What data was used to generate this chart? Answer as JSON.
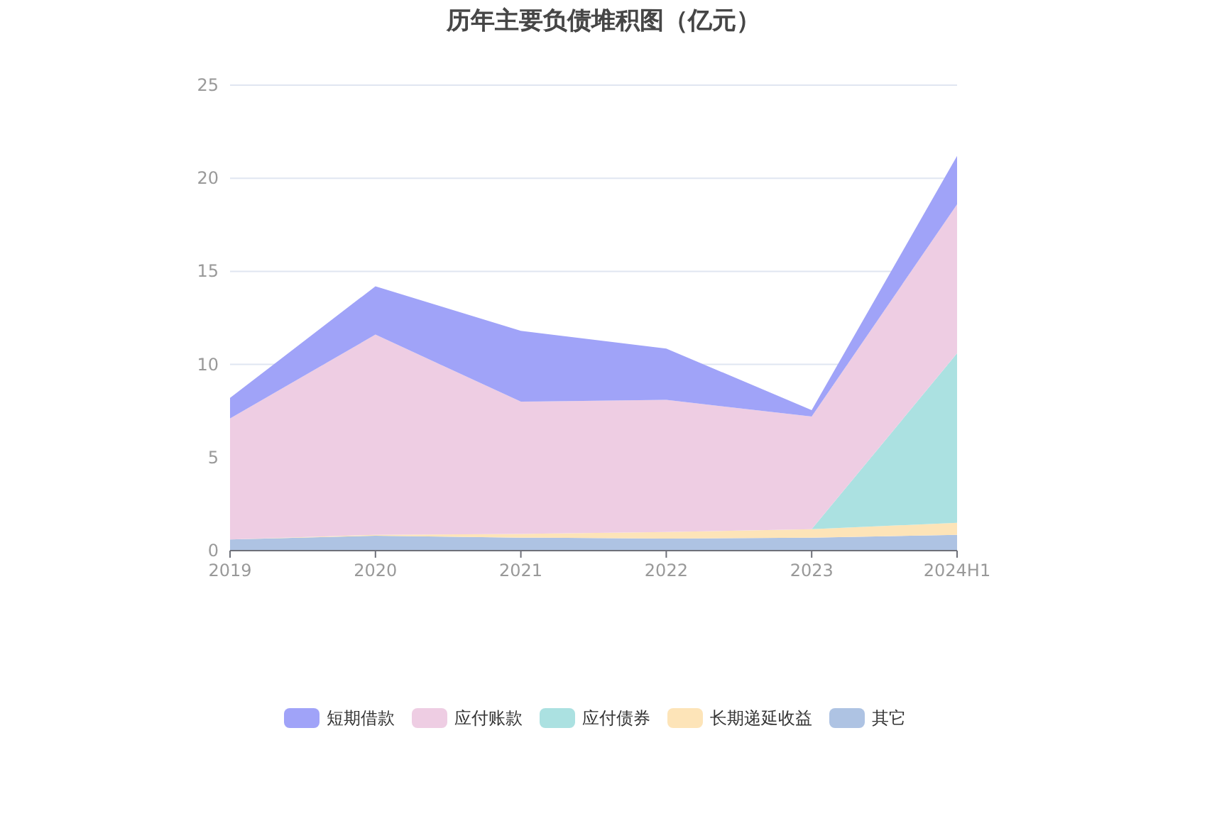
{
  "chart_data": {
    "type": "area",
    "title": "历年主要负债堆积图（亿元）",
    "stacked": true,
    "categories": [
      "2019",
      "2020",
      "2021",
      "2022",
      "2023",
      "2024H1"
    ],
    "series": [
      {
        "name": "其它",
        "color": "#aec3e3",
        "values": [
          0.6,
          0.8,
          0.7,
          0.65,
          0.7,
          0.85
        ]
      },
      {
        "name": "长期递延收益",
        "color": "#fde4b8",
        "values": [
          0,
          0.05,
          0.2,
          0.35,
          0.45,
          0.65
        ]
      },
      {
        "name": "应付债券",
        "color": "#abe1e1",
        "values": [
          0,
          0,
          0,
          0,
          0,
          9.1
        ]
      },
      {
        "name": "应付账款",
        "color": "#eecde3",
        "values": [
          6.5,
          10.75,
          7.1,
          7.1,
          6.05,
          8.0
        ]
      },
      {
        "name": "短期借款",
        "color": "#a0a3f8",
        "values": [
          1.1,
          2.6,
          3.8,
          2.75,
          0.35,
          2.6
        ]
      }
    ],
    "ylim": [
      0,
      25
    ],
    "yticks": [
      0,
      5,
      10,
      15,
      20,
      25
    ],
    "grid": "y",
    "legend": "bottom"
  }
}
